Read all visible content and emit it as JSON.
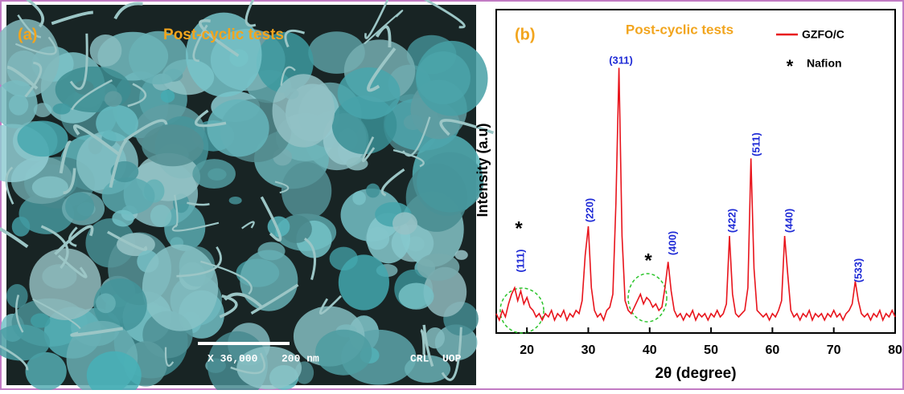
{
  "panel_a": {
    "panel_label": "(a)",
    "title": "Post-cyclic tests",
    "magnification": "X 36,000",
    "scale_bar": "200 nm",
    "tags": [
      "CRL",
      "UOP"
    ]
  },
  "chart_data": {
    "type": "line",
    "panel_label": "(b)",
    "title": "Post-cyclic tests",
    "x_label": "2θ (degree)",
    "y_label": "Intensity (a.u)",
    "xlim": [
      15,
      80
    ],
    "xticks": [
      20,
      30,
      40,
      50,
      60,
      70,
      80
    ],
    "ylim": [
      0,
      100
    ],
    "x": [
      15,
      15.5,
      16,
      16.5,
      17,
      17.5,
      18,
      18.5,
      19,
      19.5,
      20,
      20.5,
      21,
      21.5,
      22,
      22.5,
      23,
      23.5,
      24,
      24.5,
      25,
      25.5,
      26,
      26.5,
      27,
      27.5,
      28,
      28.5,
      29,
      29.5,
      30,
      30.5,
      31,
      31.5,
      32,
      32.5,
      33,
      33.5,
      34,
      34.5,
      35,
      35.5,
      36,
      36.5,
      37,
      37.5,
      38,
      38.5,
      39,
      39.5,
      40,
      40.5,
      41,
      41.5,
      42,
      42.5,
      43,
      43.5,
      44,
      44.5,
      45,
      45.5,
      46,
      46.5,
      47,
      47.5,
      48,
      48.5,
      49,
      49.5,
      50,
      50.5,
      51,
      51.5,
      52,
      52.5,
      53,
      53.5,
      54,
      54.5,
      55,
      55.5,
      56,
      56.5,
      57,
      57.5,
      58,
      58.5,
      59,
      59.5,
      60,
      60.5,
      61,
      61.5,
      62,
      62.5,
      63,
      63.5,
      64,
      64.5,
      65,
      65.5,
      66,
      66.5,
      67,
      67.5,
      68,
      68.5,
      69,
      69.5,
      70,
      70.5,
      71,
      71.5,
      72,
      72.5,
      73,
      73.5,
      74,
      74.5,
      75,
      75.5,
      76,
      76.5,
      77,
      77.5,
      78,
      78.5,
      79,
      79.5,
      80
    ],
    "series": [
      {
        "name": "GZFO/C",
        "color": "#e8141c",
        "values": [
          6,
          4,
          7,
          5,
          9,
          12,
          14,
          10,
          13,
          9,
          11,
          8,
          7,
          5,
          6,
          4,
          6,
          5,
          7,
          4,
          6,
          5,
          7,
          4,
          6,
          5,
          7,
          6,
          10,
          24,
          33,
          14,
          7,
          5,
          6,
          4,
          7,
          8,
          12,
          40,
          82,
          30,
          10,
          7,
          6,
          8,
          10,
          12,
          9,
          11,
          10,
          8,
          9,
          7,
          8,
          14,
          22,
          13,
          7,
          5,
          6,
          4,
          6,
          5,
          7,
          4,
          6,
          5,
          6,
          4,
          6,
          5,
          7,
          5,
          6,
          9,
          30,
          12,
          6,
          5,
          6,
          7,
          14,
          54,
          20,
          7,
          6,
          5,
          6,
          4,
          6,
          5,
          7,
          10,
          30,
          18,
          7,
          5,
          6,
          4,
          6,
          5,
          7,
          4,
          6,
          5,
          6,
          4,
          6,
          5,
          7,
          5,
          6,
          4,
          6,
          7,
          9,
          16,
          10,
          6,
          5,
          6,
          4,
          6,
          5,
          7,
          4,
          6,
          5,
          7,
          5
        ]
      }
    ],
    "legend": [
      {
        "symbol": "*",
        "label": "Nafion"
      }
    ],
    "peak_labels": [
      "(111)",
      "(220)",
      "(311)",
      "(400)",
      "(422)",
      "(511)",
      "(440)",
      "(533)"
    ],
    "asterisks": [
      "*",
      "*"
    ]
  }
}
